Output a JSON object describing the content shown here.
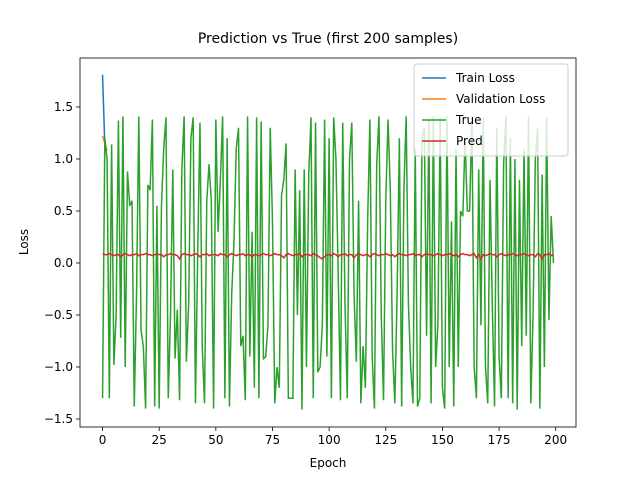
{
  "chart_data": {
    "type": "line",
    "title": "Prediction vs True (first 200 samples)",
    "x_label": "Epoch",
    "y_label": "Loss",
    "xlim": [
      -9.95,
      208.95
    ],
    "xticks": [
      0,
      25,
      50,
      75,
      100,
      125,
      150,
      175,
      200
    ],
    "ylim": [
      -1.577,
      1.971
    ],
    "yticks": [
      {
        "value": -1.5,
        "label": "−1.5"
      },
      {
        "value": -1.0,
        "label": "−1.0"
      },
      {
        "value": -0.5,
        "label": "−0.5"
      },
      {
        "value": 0,
        "label": "0.0"
      },
      0.5,
      {
        "value": 1.0,
        "label": "1.0"
      },
      1.5
    ],
    "legend": "upper right",
    "series": [
      {
        "name": "Train Loss",
        "color": "#1f77b4",
        "values": [
          1.81,
          1.13
        ]
      },
      {
        "name": "Validation Loss",
        "color": "#ff7f0e",
        "values": [
          1.22,
          1.15,
          1.08
        ]
      },
      {
        "name": "True",
        "color": "#2ca02c",
        "values": [
          -1.3,
          1.2,
          1.0,
          -1.3,
          1.14,
          -0.98,
          -0.5,
          1.37,
          -0.72,
          1.41,
          -1.0,
          0.88,
          0.55,
          0.6,
          -1.38,
          -0.3,
          1.41,
          -0.65,
          -0.8,
          -1.4,
          0.75,
          0.7,
          1.38,
          -1.38,
          0.55,
          -1.4,
          0.55,
          1.1,
          1.4,
          -1.3,
          -0.5,
          0.9,
          -0.92,
          -0.45,
          -1.32,
          0.9,
          1.41,
          -0.95,
          -0.4,
          1.2,
          1.4,
          -1.35,
          0.1,
          1.35,
          -0.8,
          -1.35,
          0.6,
          0.95,
          0.6,
          -1.4,
          1.38,
          0.3,
          0.8,
          1.41,
          -1.3,
          1.2,
          -1.38,
          -0.3,
          0.2,
          1.1,
          1.3,
          -0.8,
          -0.7,
          -1.32,
          1.41,
          -0.9,
          0.3,
          -1.2,
          1.4,
          -1.3,
          1.36,
          -0.92,
          -0.9,
          -0.6,
          1.3,
          0.4,
          -1.35,
          -1.0,
          -1.2,
          0.65,
          0.8,
          1.15,
          -1.3,
          -1.3,
          -1.3,
          0.9,
          -0.5,
          0.7,
          -1.41,
          0.9,
          -1.0,
          0.85,
          1.4,
          -1.3,
          1.35,
          -1.05,
          -1.0,
          -0.6,
          1.38,
          -0.9,
          1.2,
          -1.3,
          1.4,
          1.0,
          -0.1,
          -1.32,
          1.35,
          -0.4,
          -1.3,
          1.0,
          1.35,
          -0.3,
          -0.95,
          0.6,
          -1.35,
          -0.8,
          -1.2,
          0.4,
          1.38,
          -0.9,
          -1.4,
          0.95,
          1.41,
          -0.5,
          -1.32,
          0.6,
          1.38,
          0.7,
          -0.85,
          -1.35,
          -0.3,
          1.2,
          -1.38,
          0.7,
          1.41,
          -0.4,
          -1.0,
          -1.35,
          1.1,
          -1.38,
          -1.3,
          1.2,
          1.3,
          -0.7,
          1.38,
          -1.35,
          1.41,
          -1.0,
          -0.6,
          1.4,
          -1.2,
          -1.4,
          1.41,
          -1.0,
          0.4,
          -1.38,
          1.1,
          -1.0,
          0.5,
          0.45,
          1.2,
          0.5,
          0.5,
          1.41,
          -1.0,
          -1.3,
          0.9,
          -0.6,
          1.4,
          -1.0,
          -1.35,
          0.8,
          -0.4,
          -1.38,
          1.3,
          -0.9,
          -1.3,
          0.95,
          1.41,
          -1.3,
          1.2,
          -1.35,
          1.0,
          -1.41,
          0.8,
          -0.8,
          1.1,
          -0.7,
          1.41,
          -1.35,
          -0.5,
          1.0,
          1.3,
          -1.4,
          0.85,
          -1.0,
          1.4,
          -0.55,
          0.45,
          0.0
        ]
      },
      {
        "name": "Pred",
        "color": "#d62728",
        "values": [
          0.09,
          0.08,
          0.08,
          0.09,
          0.08,
          0.07,
          0.08,
          0.08,
          0.06,
          0.08,
          0.09,
          0.08,
          0.07,
          0.08,
          0.08,
          0.09,
          0.07,
          0.08,
          0.08,
          0.09,
          0.08,
          0.08,
          0.07,
          0.08,
          0.09,
          0.08,
          0.08,
          0.06,
          0.08,
          0.08,
          0.09,
          0.08,
          0.08,
          0.07,
          0.04,
          0.08,
          0.09,
          0.08,
          0.08,
          0.07,
          0.08,
          0.09,
          0.08,
          0.06,
          0.08,
          0.08,
          0.09,
          0.07,
          0.08,
          0.08,
          0.08,
          0.07,
          0.09,
          0.08,
          0.08,
          0.06,
          0.08,
          0.09,
          0.08,
          0.07,
          0.08,
          0.08,
          0.09,
          0.07,
          0.08,
          0.08,
          0.06,
          0.08,
          0.08,
          0.07,
          0.08,
          0.09,
          0.08,
          0.08,
          0.07,
          0.08,
          0.09,
          0.08,
          0.08,
          0.07,
          0.05,
          0.08,
          0.09,
          0.08,
          0.07,
          0.08,
          0.08,
          0.09,
          0.06,
          0.08,
          0.08,
          0.08,
          0.07,
          0.09,
          0.08,
          0.07,
          0.05,
          0.04,
          0.06,
          0.08,
          0.08,
          0.07,
          0.09,
          0.08,
          0.06,
          0.08,
          0.08,
          0.09,
          0.07,
          0.08,
          0.08,
          0.05,
          0.08,
          0.09,
          0.08,
          0.07,
          0.08,
          0.08,
          0.06,
          0.08,
          0.09,
          0.08,
          0.07,
          0.08,
          0.08,
          0.09,
          0.08,
          0.07,
          0.08,
          0.06,
          0.08,
          0.09,
          0.08,
          0.08,
          0.07,
          0.08,
          0.08,
          0.09,
          0.07,
          0.08,
          0.08,
          0.06,
          0.08,
          0.09,
          0.08,
          0.08,
          0.07,
          0.08,
          0.09,
          0.08,
          0.07,
          0.08,
          0.08,
          0.09,
          0.08,
          0.07,
          0.08,
          0.06,
          0.08,
          0.09,
          0.08,
          0.08,
          0.07,
          0.08,
          0.09,
          0.05,
          0.08,
          0.04,
          0.08,
          0.07,
          0.08,
          0.09,
          0.08,
          0.08,
          0.06,
          0.08,
          0.09,
          0.08,
          0.07,
          0.08,
          0.08,
          0.09,
          0.08,
          0.07,
          0.08,
          0.08,
          0.09,
          0.08,
          0.07,
          0.08,
          0.08,
          0.06,
          0.09,
          0.08,
          0.04,
          0.08,
          0.08,
          0.09,
          0.07,
          0.08
        ]
      }
    ]
  }
}
